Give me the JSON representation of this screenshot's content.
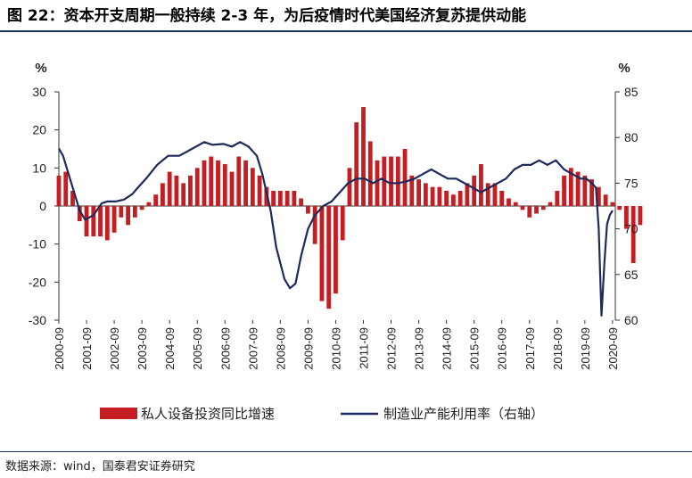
{
  "title": "图 22：资本开支周期一般持续 2-3 年，为后疫情时代美国经济复苏提供动能",
  "source": "数据来源：wind，国泰君安证券研究",
  "colors": {
    "bar": "#c41e22",
    "line": "#1c2a5c",
    "rule": "#1a2f5a"
  },
  "chart_data": {
    "type": "bar+line",
    "left_axis": {
      "unit_label": "%",
      "ylim": [
        -30,
        30
      ],
      "ticks": [
        30,
        20,
        10,
        0,
        -10,
        -20,
        -30
      ]
    },
    "right_axis": {
      "unit_label": "%",
      "ylim": [
        60,
        85
      ],
      "ticks": [
        85,
        80,
        75,
        70,
        65,
        60
      ]
    },
    "x_tick_labels": [
      "2000-09",
      "2001-09",
      "2002-09",
      "2003-09",
      "2004-09",
      "2005-09",
      "2006-09",
      "2007-09",
      "2008-09",
      "2009-09",
      "2010-09",
      "2011-09",
      "2012-09",
      "2013-09",
      "2014-09",
      "2015-09",
      "2016-09",
      "2017-09",
      "2018-09",
      "2019-09",
      "2020-09"
    ],
    "series": [
      {
        "name": "私人设备投资同比增速",
        "kind": "bar",
        "axis": "left",
        "start": 2000.75,
        "step": 0.25,
        "values": [
          8,
          9,
          4,
          -4,
          -8,
          -8,
          -8,
          -9,
          -7,
          -3,
          -5,
          -3,
          -1,
          1,
          3,
          6,
          9,
          8,
          6,
          8,
          10,
          12,
          13,
          12,
          11,
          9,
          13,
          12,
          10,
          8,
          5,
          4,
          4,
          4,
          4,
          2,
          -2,
          -10,
          -25,
          -27,
          -23,
          -9,
          10,
          22,
          26,
          17,
          12,
          13,
          13,
          13,
          15,
          8,
          7,
          6,
          5,
          5,
          4,
          3,
          4,
          6,
          8,
          11,
          6,
          6,
          4,
          2,
          1,
          -1,
          -3,
          -2,
          -1,
          1,
          4,
          8,
          10,
          9,
          8,
          7,
          5,
          3,
          1,
          -1,
          -6,
          -15,
          -5
        ]
      },
      {
        "name": "制造业产能利用率（右轴）",
        "kind": "line",
        "axis": "right",
        "x": [
          2000.75,
          2000.9,
          2001.1,
          2001.3,
          2001.5,
          2001.7,
          2002.0,
          2002.3,
          2002.5,
          2002.8,
          2003.1,
          2003.4,
          2003.6,
          2003.9,
          2004.3,
          2004.7,
          2005.1,
          2005.4,
          2005.7,
          2006.0,
          2006.3,
          2006.7,
          2007.0,
          2007.3,
          2007.6,
          2007.9,
          2008.1,
          2008.4,
          2008.6,
          2008.9,
          2009.1,
          2009.3,
          2009.5,
          2009.75,
          2010.0,
          2010.3,
          2010.6,
          2010.9,
          2011.2,
          2011.5,
          2011.8,
          2012.1,
          2012.4,
          2012.7,
          2013.0,
          2013.3,
          2013.6,
          2013.9,
          2014.2,
          2014.5,
          2014.8,
          2015.1,
          2015.4,
          2015.7,
          2016.0,
          2016.3,
          2016.6,
          2016.9,
          2017.2,
          2017.5,
          2017.8,
          2018.1,
          2018.4,
          2018.7,
          2019.0,
          2019.3,
          2019.6,
          2019.8,
          2020.0,
          2020.15,
          2020.25,
          2020.35,
          2020.45,
          2020.55,
          2020.65,
          2020.75
        ],
        "values": [
          78.8,
          78.0,
          76.0,
          74.0,
          72.0,
          71.0,
          71.5,
          72.8,
          73.0,
          73.0,
          73.2,
          73.8,
          74.5,
          75.5,
          77.0,
          78.0,
          78.0,
          78.5,
          79.0,
          79.5,
          79.2,
          79.3,
          79.0,
          79.5,
          79.0,
          78.0,
          76.0,
          72.0,
          68.0,
          64.5,
          63.5,
          64.0,
          67.0,
          70.0,
          71.5,
          72.5,
          73.0,
          74.0,
          75.0,
          75.5,
          75.5,
          75.0,
          75.5,
          75.0,
          75.0,
          75.2,
          75.5,
          76.0,
          76.5,
          76.0,
          75.5,
          75.5,
          75.0,
          74.5,
          74.0,
          74.5,
          75.0,
          75.5,
          76.5,
          77.0,
          77.0,
          77.5,
          77.0,
          77.5,
          76.5,
          76.0,
          75.5,
          75.5,
          75.0,
          74.5,
          70.0,
          60.5,
          66.0,
          70.5,
          71.5,
          72.0
        ]
      }
    ],
    "legend_position": "bottom"
  }
}
